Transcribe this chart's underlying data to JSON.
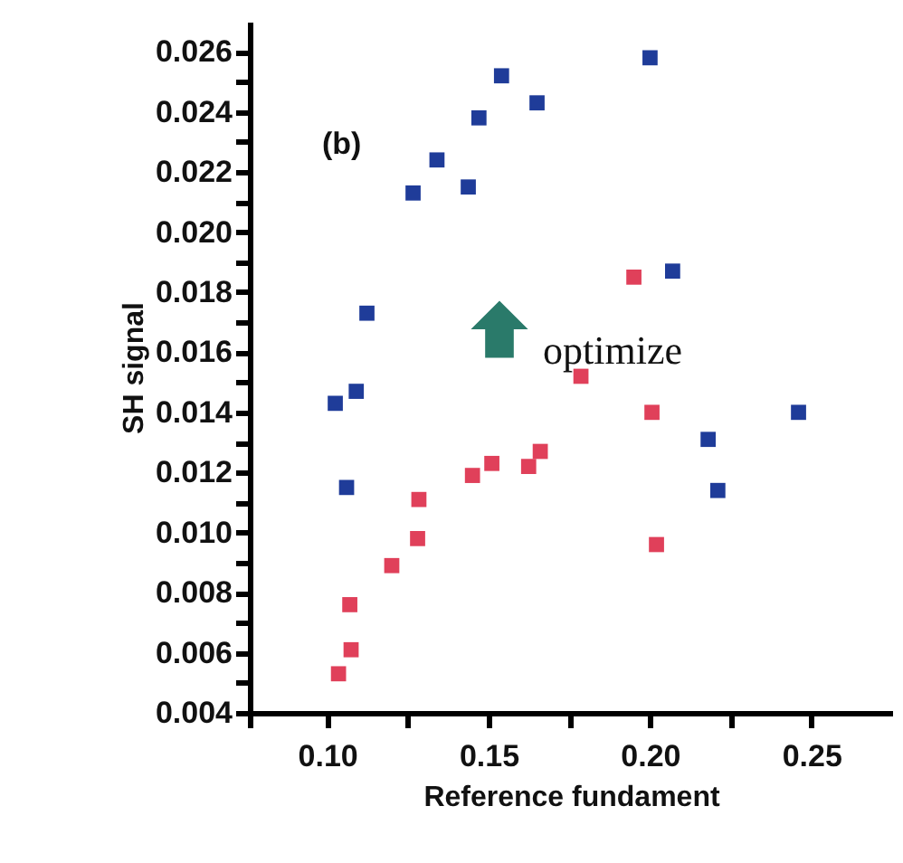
{
  "chart_data": {
    "type": "scatter",
    "xlabel": "Reference fundament",
    "ylabel": "SH signal",
    "annotations": [
      "(b)",
      "optimize"
    ],
    "marker": "square",
    "grid": false,
    "xlim": [
      0.076,
      0.275
    ],
    "ylim": [
      0.004,
      0.027
    ],
    "xticks": [
      {
        "value": 0.076,
        "label": null
      },
      {
        "value": 0.1,
        "label": "0.10"
      },
      {
        "value": 0.125,
        "label": null
      },
      0.15,
      {
        "value": 0.175,
        "label": null
      },
      {
        "value": 0.2,
        "label": "0.20"
      },
      {
        "value": 0.225,
        "label": null
      },
      0.25
    ],
    "yticks": [
      0.004,
      {
        "value": 0.005,
        "label": null
      },
      0.006,
      {
        "value": 0.007,
        "label": null
      },
      0.008,
      {
        "value": 0.009,
        "label": null
      },
      {
        "value": 0.01,
        "label": "0.010"
      },
      {
        "value": 0.011,
        "label": null
      },
      0.012,
      {
        "value": 0.013,
        "label": null
      },
      0.014,
      {
        "value": 0.015,
        "label": null
      },
      0.016,
      {
        "value": 0.017,
        "label": null
      },
      0.018,
      {
        "value": 0.019,
        "label": null
      },
      {
        "value": 0.02,
        "label": "0.020"
      },
      {
        "value": 0.021,
        "label": null
      },
      0.022,
      {
        "value": 0.023,
        "label": null
      },
      0.024,
      {
        "value": 0.025,
        "label": null
      },
      0.026
    ],
    "series": [
      {
        "color": "#1f3c99",
        "x": [
          0.1025,
          0.109,
          0.106,
          0.1123,
          0.1266,
          0.134,
          0.1437,
          0.147,
          0.154,
          0.165,
          0.2,
          0.207,
          0.218,
          0.221,
          0.246
        ],
        "values": [
          0.0143,
          0.0147,
          0.0115,
          0.0173,
          0.0213,
          0.0224,
          0.0215,
          0.0238,
          0.0252,
          0.0243,
          0.0258,
          0.0187,
          0.0131,
          0.0114,
          0.014
        ]
      },
      {
        "color": "#e0405a",
        "x": [
          0.1035,
          0.107,
          0.1074,
          0.12,
          0.128,
          0.1284,
          0.145,
          0.151,
          0.1624,
          0.166,
          0.1786,
          0.195,
          0.2006,
          0.202
        ],
        "values": [
          0.0053,
          0.0076,
          0.0061,
          0.0089,
          0.0098,
          0.0111,
          0.0119,
          0.0123,
          0.0122,
          0.0127,
          0.0152,
          0.0185,
          0.014,
          0.0096
        ]
      }
    ]
  }
}
